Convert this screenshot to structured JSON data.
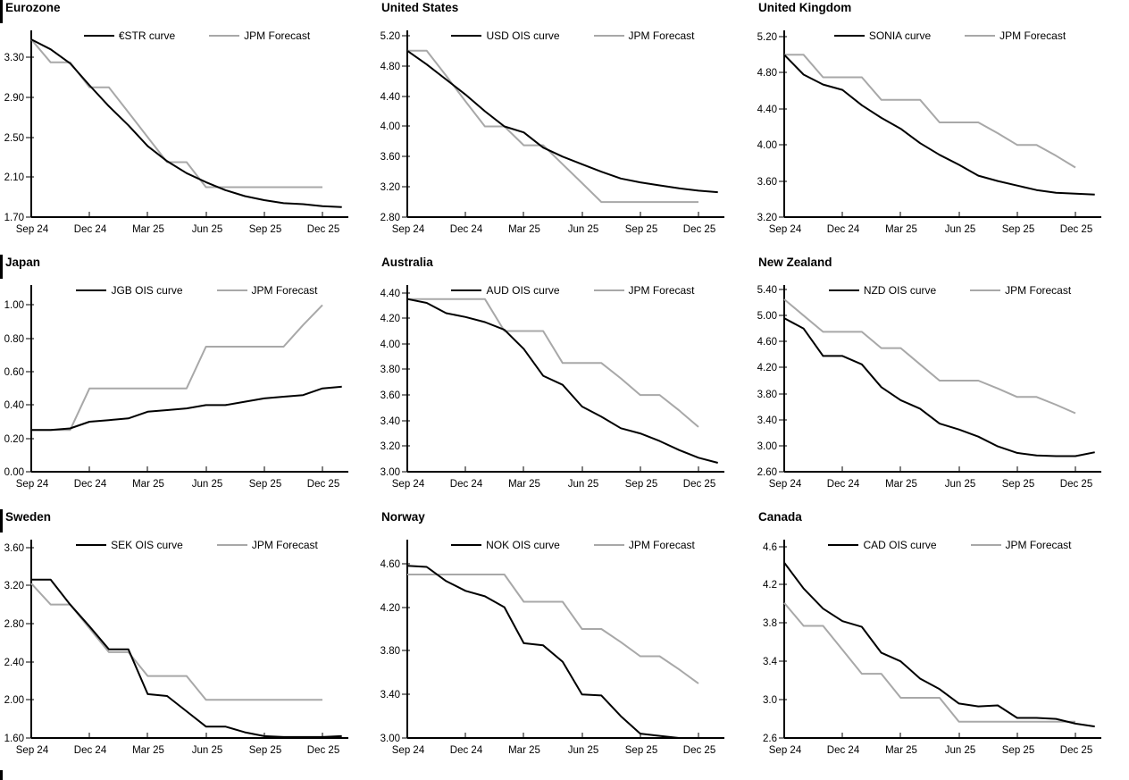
{
  "report": {
    "x_tick_labels_shared": [
      "Sep 24",
      "Dec 24",
      "Mar 25",
      "Jun 25",
      "Sep 25",
      "Dec 25"
    ],
    "colors": {
      "ois_line": "#000000",
      "forecast_line": "#a8a8a8",
      "axis": "#000000",
      "text": "#000000"
    }
  },
  "chart_data": [
    {
      "type": "line",
      "title": "Eurozone",
      "grid": false,
      "legend_position": "top",
      "x_tick_labels": [
        "Sep 24",
        "Dec 24",
        "Mar 25",
        "Jun 25",
        "Sep 25",
        "Dec 25"
      ],
      "x_tick_positions": [
        0,
        3,
        6,
        9,
        12,
        15
      ],
      "y_ticks": [
        "1.70",
        "2.10",
        "2.50",
        "2.90",
        "3.30"
      ],
      "ylim": [
        1.7,
        3.57
      ],
      "series": [
        {
          "name": "€STR curve",
          "color": "#000000",
          "values": [
            3.48,
            3.38,
            3.24,
            3.02,
            2.81,
            2.62,
            2.41,
            2.26,
            2.14,
            2.05,
            1.97,
            1.91,
            1.87,
            1.84,
            1.83,
            1.81,
            1.8
          ]
        },
        {
          "name": "JPM Forecast",
          "color": "#a8a8a8",
          "values": [
            3.48,
            3.25,
            3.25,
            3.0,
            3.0,
            2.75,
            2.5,
            2.25,
            2.25,
            2.0,
            2.0,
            2.0,
            2.0,
            2.0,
            2.0,
            2.0
          ]
        }
      ]
    },
    {
      "type": "line",
      "title": "United States",
      "grid": false,
      "legend_position": "top",
      "x_tick_labels": [
        "Sep 24",
        "Dec 24",
        "Mar 25",
        "Jun 25",
        "Sep 25",
        "Dec 25"
      ],
      "x_tick_positions": [
        0,
        3,
        6,
        9,
        12,
        15
      ],
      "y_ticks": [
        "2.80",
        "3.20",
        "3.60",
        "4.00",
        "4.40",
        "4.80",
        "5.20"
      ],
      "ylim": [
        2.8,
        5.27
      ],
      "series": [
        {
          "name": "USD OIS curve",
          "color": "#000000",
          "values": [
            5.0,
            4.82,
            4.62,
            4.42,
            4.2,
            4.0,
            3.92,
            3.72,
            3.6,
            3.5,
            3.4,
            3.31,
            3.26,
            3.22,
            3.18,
            3.15,
            3.13
          ]
        },
        {
          "name": "JPM Forecast",
          "color": "#a8a8a8",
          "values": [
            5.0,
            5.0,
            4.67,
            4.33,
            4.0,
            4.0,
            3.75,
            3.75,
            3.5,
            3.25,
            3.0,
            3.0,
            3.0,
            3.0,
            3.0,
            3.0
          ]
        }
      ]
    },
    {
      "type": "line",
      "title": "United Kingdom",
      "grid": false,
      "legend_position": "top",
      "x_tick_labels": [
        "Sep 24",
        "Dec 24",
        "Mar 25",
        "Jun 25",
        "Sep 25",
        "Dec 25"
      ],
      "x_tick_positions": [
        0,
        3,
        6,
        9,
        12,
        15
      ],
      "y_ticks": [
        "3.20",
        "3.60",
        "4.00",
        "4.40",
        "4.80",
        "5.20"
      ],
      "ylim": [
        3.2,
        5.27
      ],
      "series": [
        {
          "name": "SONIA curve",
          "color": "#000000",
          "values": [
            5.0,
            4.78,
            4.67,
            4.61,
            4.44,
            4.3,
            4.18,
            4.02,
            3.89,
            3.78,
            3.66,
            3.6,
            3.55,
            3.5,
            3.47,
            3.46,
            3.45
          ]
        },
        {
          "name": "JPM Forecast",
          "color": "#a8a8a8",
          "values": [
            5.0,
            5.0,
            4.75,
            4.75,
            4.75,
            4.5,
            4.5,
            4.5,
            4.25,
            4.25,
            4.25,
            4.13,
            4.0,
            4.0,
            3.88,
            3.75
          ]
        }
      ]
    },
    {
      "type": "line",
      "title": "Japan",
      "grid": false,
      "legend_position": "top",
      "x_tick_labels": [
        "Sep 24",
        "Dec 24",
        "Mar 25",
        "Jun 25",
        "Sep 25",
        "Dec 25"
      ],
      "x_tick_positions": [
        0,
        3,
        6,
        9,
        12,
        15
      ],
      "y_ticks": [
        "0.00",
        "0.20",
        "0.40",
        "0.60",
        "0.80",
        "1.00"
      ],
      "ylim": [
        0.0,
        1.12
      ],
      "series": [
        {
          "name": "JGB OIS curve",
          "color": "#000000",
          "values": [
            0.25,
            0.25,
            0.26,
            0.3,
            0.31,
            0.32,
            0.36,
            0.37,
            0.38,
            0.4,
            0.4,
            0.42,
            0.44,
            0.45,
            0.46,
            0.5,
            0.51
          ]
        },
        {
          "name": "JPM Forecast",
          "color": "#a8a8a8",
          "values": [
            0.25,
            0.25,
            0.25,
            0.5,
            0.5,
            0.5,
            0.5,
            0.5,
            0.5,
            0.75,
            0.75,
            0.75,
            0.75,
            0.75,
            0.88,
            1.0
          ]
        }
      ]
    },
    {
      "type": "line",
      "title": "Australia",
      "grid": false,
      "legend_position": "top",
      "x_tick_labels": [
        "Sep 24",
        "Dec 24",
        "Mar 25",
        "Jun 25",
        "Sep 25",
        "Dec 25"
      ],
      "x_tick_positions": [
        0,
        3,
        6,
        9,
        12,
        15
      ],
      "y_ticks": [
        "3.00",
        "3.20",
        "3.40",
        "3.60",
        "3.80",
        "4.00",
        "4.20",
        "4.40"
      ],
      "ylim": [
        3.0,
        4.46
      ],
      "series": [
        {
          "name": "AUD OIS curve",
          "color": "#000000",
          "values": [
            4.35,
            4.32,
            4.24,
            4.21,
            4.17,
            4.11,
            3.96,
            3.75,
            3.68,
            3.51,
            3.43,
            3.34,
            3.3,
            3.24,
            3.17,
            3.11,
            3.07
          ]
        },
        {
          "name": "JPM Forecast",
          "color": "#a8a8a8",
          "values": [
            4.35,
            4.35,
            4.35,
            4.35,
            4.35,
            4.1,
            4.1,
            4.1,
            3.85,
            3.85,
            3.85,
            3.73,
            3.6,
            3.6,
            3.48,
            3.35
          ]
        }
      ]
    },
    {
      "type": "line",
      "title": "New Zealand",
      "grid": false,
      "legend_position": "top",
      "x_tick_labels": [
        "Sep 24",
        "Dec 24",
        "Mar 25",
        "Jun 25",
        "Sep 25",
        "Dec 25"
      ],
      "x_tick_positions": [
        0,
        3,
        6,
        9,
        12,
        15
      ],
      "y_ticks": [
        "2.60",
        "3.00",
        "3.40",
        "3.80",
        "4.20",
        "4.60",
        "5.00",
        "5.40"
      ],
      "ylim": [
        2.6,
        5.47
      ],
      "series": [
        {
          "name": "NZD OIS curve",
          "color": "#000000",
          "values": [
            4.96,
            4.8,
            4.38,
            4.38,
            4.25,
            3.9,
            3.7,
            3.57,
            3.34,
            3.25,
            3.14,
            2.99,
            2.89,
            2.85,
            2.84,
            2.84,
            2.9
          ]
        },
        {
          "name": "JPM Forecast",
          "color": "#a8a8a8",
          "values": [
            5.25,
            5.0,
            4.75,
            4.75,
            4.75,
            4.5,
            4.5,
            4.25,
            4.0,
            4.0,
            4.0,
            3.88,
            3.75,
            3.75,
            3.63,
            3.5
          ]
        }
      ]
    },
    {
      "type": "line",
      "title": "Sweden",
      "grid": false,
      "legend_position": "top",
      "x_tick_labels": [
        "Sep 24",
        "Dec 24",
        "Mar 25",
        "Jun 25",
        "Sep 25",
        "Dec 25"
      ],
      "x_tick_positions": [
        0,
        3,
        6,
        9,
        12,
        15
      ],
      "y_ticks": [
        "1.60",
        "2.00",
        "2.40",
        "2.80",
        "3.20",
        "3.60"
      ],
      "ylim": [
        1.6,
        3.68
      ],
      "series": [
        {
          "name": "SEK OIS curve",
          "color": "#000000",
          "values": [
            3.26,
            3.26,
            3.0,
            2.77,
            2.53,
            2.53,
            2.06,
            2.04,
            1.88,
            1.72,
            1.72,
            1.66,
            1.62,
            1.61,
            1.61,
            1.61,
            1.62
          ]
        },
        {
          "name": "JPM Forecast",
          "color": "#a8a8a8",
          "values": [
            3.22,
            3.0,
            3.0,
            2.75,
            2.5,
            2.5,
            2.25,
            2.25,
            2.25,
            2.0,
            2.0,
            2.0,
            2.0,
            2.0,
            2.0,
            2.0
          ]
        }
      ]
    },
    {
      "type": "line",
      "title": "Norway",
      "grid": false,
      "legend_position": "top",
      "x_tick_labels": [
        "Sep 24",
        "Dec 24",
        "Mar 25",
        "Jun 25",
        "Sep 25",
        "Dec 25"
      ],
      "x_tick_positions": [
        0,
        3,
        6,
        9,
        12,
        15
      ],
      "y_ticks": [
        "3.00",
        "3.40",
        "3.80",
        "4.20",
        "4.60"
      ],
      "ylim": [
        3.0,
        4.82
      ],
      "series": [
        {
          "name": "NOK OIS curve",
          "color": "#000000",
          "values": [
            4.58,
            4.57,
            4.44,
            4.35,
            4.3,
            4.2,
            3.87,
            3.85,
            3.7,
            3.4,
            3.39,
            3.2,
            3.04,
            3.02,
            3.0,
            3.0,
            3.0
          ]
        },
        {
          "name": "JPM Forecast",
          "color": "#a8a8a8",
          "values": [
            4.5,
            4.5,
            4.5,
            4.5,
            4.5,
            4.5,
            4.25,
            4.25,
            4.25,
            4.0,
            4.0,
            3.88,
            3.75,
            3.75,
            3.63,
            3.5
          ]
        }
      ]
    },
    {
      "type": "line",
      "title": "Canada",
      "grid": false,
      "legend_position": "top",
      "x_tick_labels": [
        "Sep 24",
        "Dec 24",
        "Mar 25",
        "Jun 25",
        "Sep 25",
        "Dec 25"
      ],
      "x_tick_positions": [
        0,
        3,
        6,
        9,
        12,
        15
      ],
      "y_ticks": [
        "2.6",
        "3.0",
        "3.4",
        "3.8",
        "4.2",
        "4.6"
      ],
      "ylim": [
        2.6,
        4.67
      ],
      "series": [
        {
          "name": "CAD OIS curve",
          "color": "#000000",
          "values": [
            4.43,
            4.16,
            3.95,
            3.82,
            3.76,
            3.49,
            3.4,
            3.22,
            3.11,
            2.96,
            2.93,
            2.94,
            2.81,
            2.81,
            2.8,
            2.75,
            2.72
          ]
        },
        {
          "name": "JPM Forecast",
          "color": "#a8a8a8",
          "values": [
            4.01,
            3.77,
            3.77,
            3.52,
            3.27,
            3.27,
            3.02,
            3.02,
            3.02,
            2.77,
            2.77,
            2.77,
            2.77,
            2.77,
            2.77,
            2.77
          ]
        }
      ]
    }
  ]
}
